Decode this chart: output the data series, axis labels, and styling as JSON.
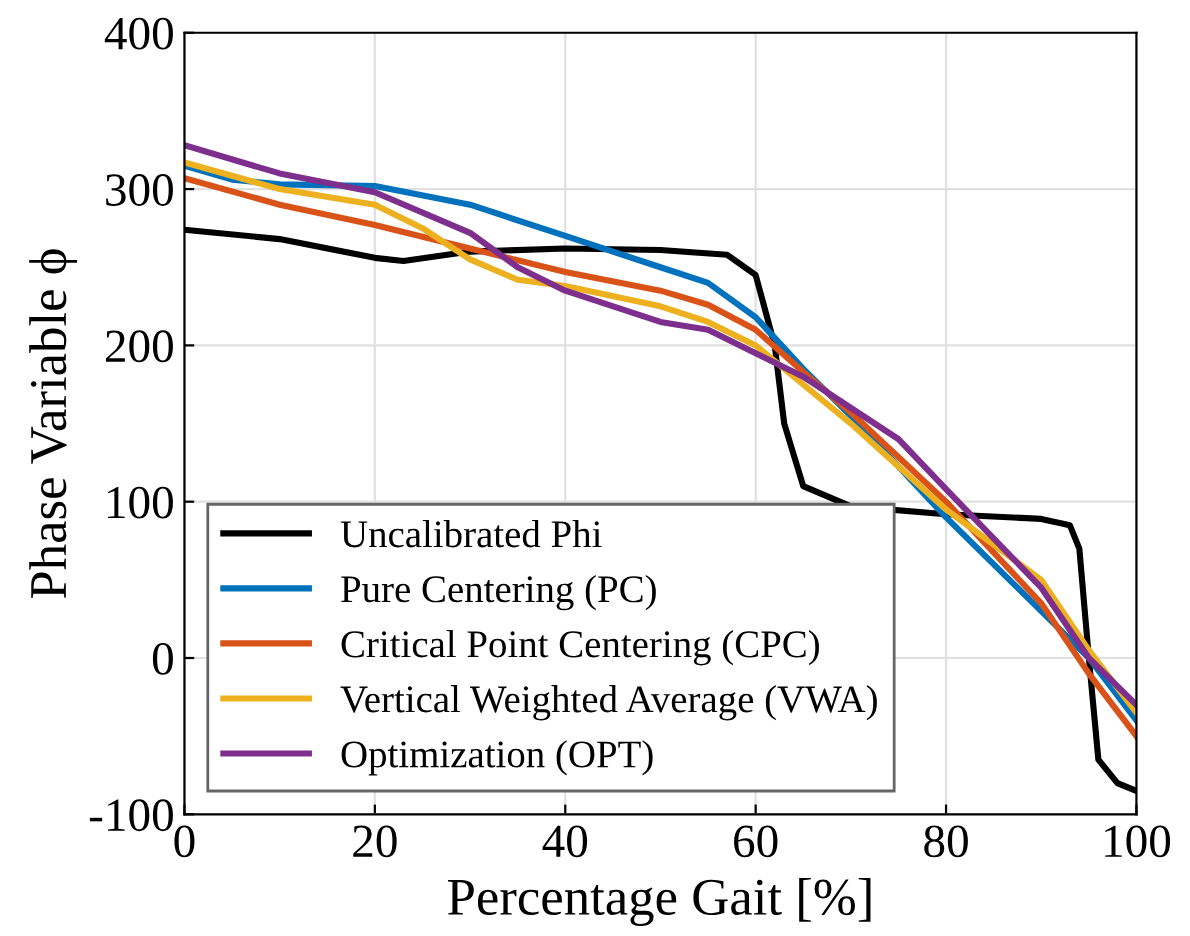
{
  "chart_data": {
    "type": "line",
    "xlabel": "Percentage Gait [%]",
    "ylabel": "Phase Variable ϕ",
    "xlim": [
      0,
      100
    ],
    "xticks": [
      0,
      20,
      40,
      60,
      80,
      100
    ],
    "ylim": [
      -100,
      400
    ],
    "yticks": [
      -100,
      0,
      100,
      200,
      300,
      400
    ],
    "grid": true,
    "legend": "bottom left",
    "series": [
      {
        "name": "Uncalibrated Phi",
        "color": "#000000",
        "x": [
          0,
          10,
          20,
          23,
          30,
          40,
          50,
          57,
          60,
          62,
          63,
          65,
          70,
          80,
          90,
          93,
          94,
          95,
          96,
          98,
          100
        ],
        "values": [
          274,
          268,
          256,
          254,
          260,
          262,
          261,
          258,
          245,
          200,
          150,
          110,
          97,
          92,
          89,
          85,
          70,
          0,
          -65,
          -80,
          -85
        ]
      },
      {
        "name": "Pure Centering (PC)",
        "color": "#0072bd",
        "x": [
          0,
          5,
          10,
          20,
          30,
          40,
          50,
          55,
          60,
          65,
          70,
          80,
          90,
          95,
          100
        ],
        "values": [
          315,
          306,
          303,
          302,
          290,
          270,
          250,
          240,
          218,
          185,
          155,
          90,
          30,
          0,
          -40
        ]
      },
      {
        "name": "Critical Point Centering (CPC)",
        "color": "#d95319",
        "x": [
          0,
          10,
          20,
          30,
          40,
          50,
          55,
          60,
          65,
          70,
          80,
          90,
          95,
          100
        ],
        "values": [
          307,
          290,
          277,
          262,
          247,
          235,
          226,
          210,
          183,
          157,
          100,
          35,
          -10,
          -50
        ]
      },
      {
        "name": "Vertical Weighted Average (VWA)",
        "color": "#edb120",
        "x": [
          0,
          10,
          20,
          25,
          30,
          35,
          40,
          50,
          55,
          60,
          70,
          80,
          90,
          95,
          100
        ],
        "values": [
          317,
          300,
          290,
          275,
          255,
          242,
          238,
          225,
          215,
          200,
          150,
          95,
          50,
          5,
          -35
        ]
      },
      {
        "name": "Optimization (OPT)",
        "color": "#7e2f8e",
        "x": [
          0,
          10,
          20,
          30,
          35,
          40,
          50,
          55,
          60,
          65,
          70,
          75,
          80,
          90,
          95,
          100
        ],
        "values": [
          328,
          310,
          298,
          272,
          250,
          235,
          215,
          210,
          195,
          180,
          160,
          140,
          108,
          45,
          0,
          -30
        ]
      }
    ]
  }
}
